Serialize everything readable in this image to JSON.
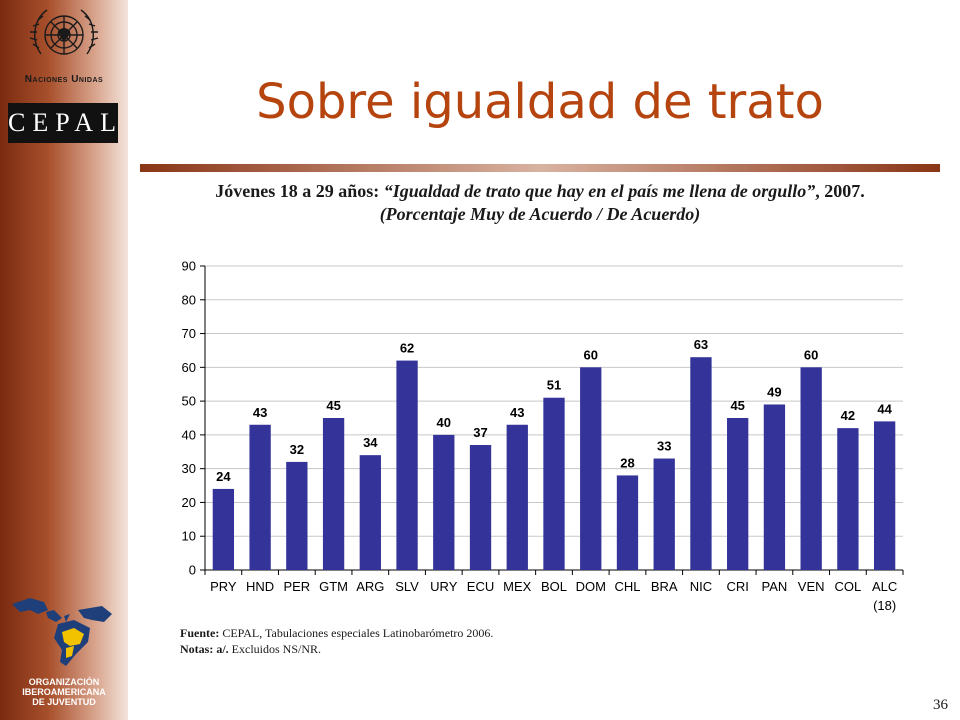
{
  "sidebar": {
    "un_label": "Naciones Unidas",
    "cepal_label": "CEPAL",
    "oij_label": [
      "ORGANIZACIÓN",
      "IBEROAMERICANA",
      "DE JUVENTUD"
    ]
  },
  "slide": {
    "title": "Sobre igualdad de trato",
    "subtitle_lead": "Jóvenes 18 a 29 años: ",
    "subtitle_quote": "“Igualdad de trato que hay en el país me llena de orgullo”",
    "subtitle_tail": ", 2007.",
    "subtitle_line2": "(Porcentaje Muy de Acuerdo / De Acuerdo)",
    "source_label": "Fuente:",
    "source_text": "CEPAL, Tabulaciones especiales Latinobarómetro 2006.",
    "notes_label": "Notas: a/.",
    "notes_text": "Excluidos NS/NR.",
    "page_number": "36"
  },
  "colors": {
    "bar": "#333399",
    "title": "#b5440e",
    "grid": "#c8c8c8"
  },
  "chart_data": {
    "type": "bar",
    "categories": [
      "PRY",
      "HND",
      "PER",
      "GTM",
      "ARG",
      "SLV",
      "URY",
      "ECU",
      "MEX",
      "BOL",
      "DOM",
      "CHL",
      "BRA",
      "NIC",
      "CRI",
      "PAN",
      "VEN",
      "COL",
      "ALC"
    ],
    "category_note": "(18)",
    "values": [
      24,
      43,
      32,
      45,
      34,
      62,
      40,
      37,
      43,
      51,
      60,
      28,
      33,
      63,
      45,
      49,
      60,
      42,
      44
    ],
    "ylim": [
      0,
      90
    ],
    "yticks": [
      0,
      10,
      20,
      30,
      40,
      50,
      60,
      70,
      80,
      90
    ],
    "grid": true,
    "legend": "none"
  }
}
